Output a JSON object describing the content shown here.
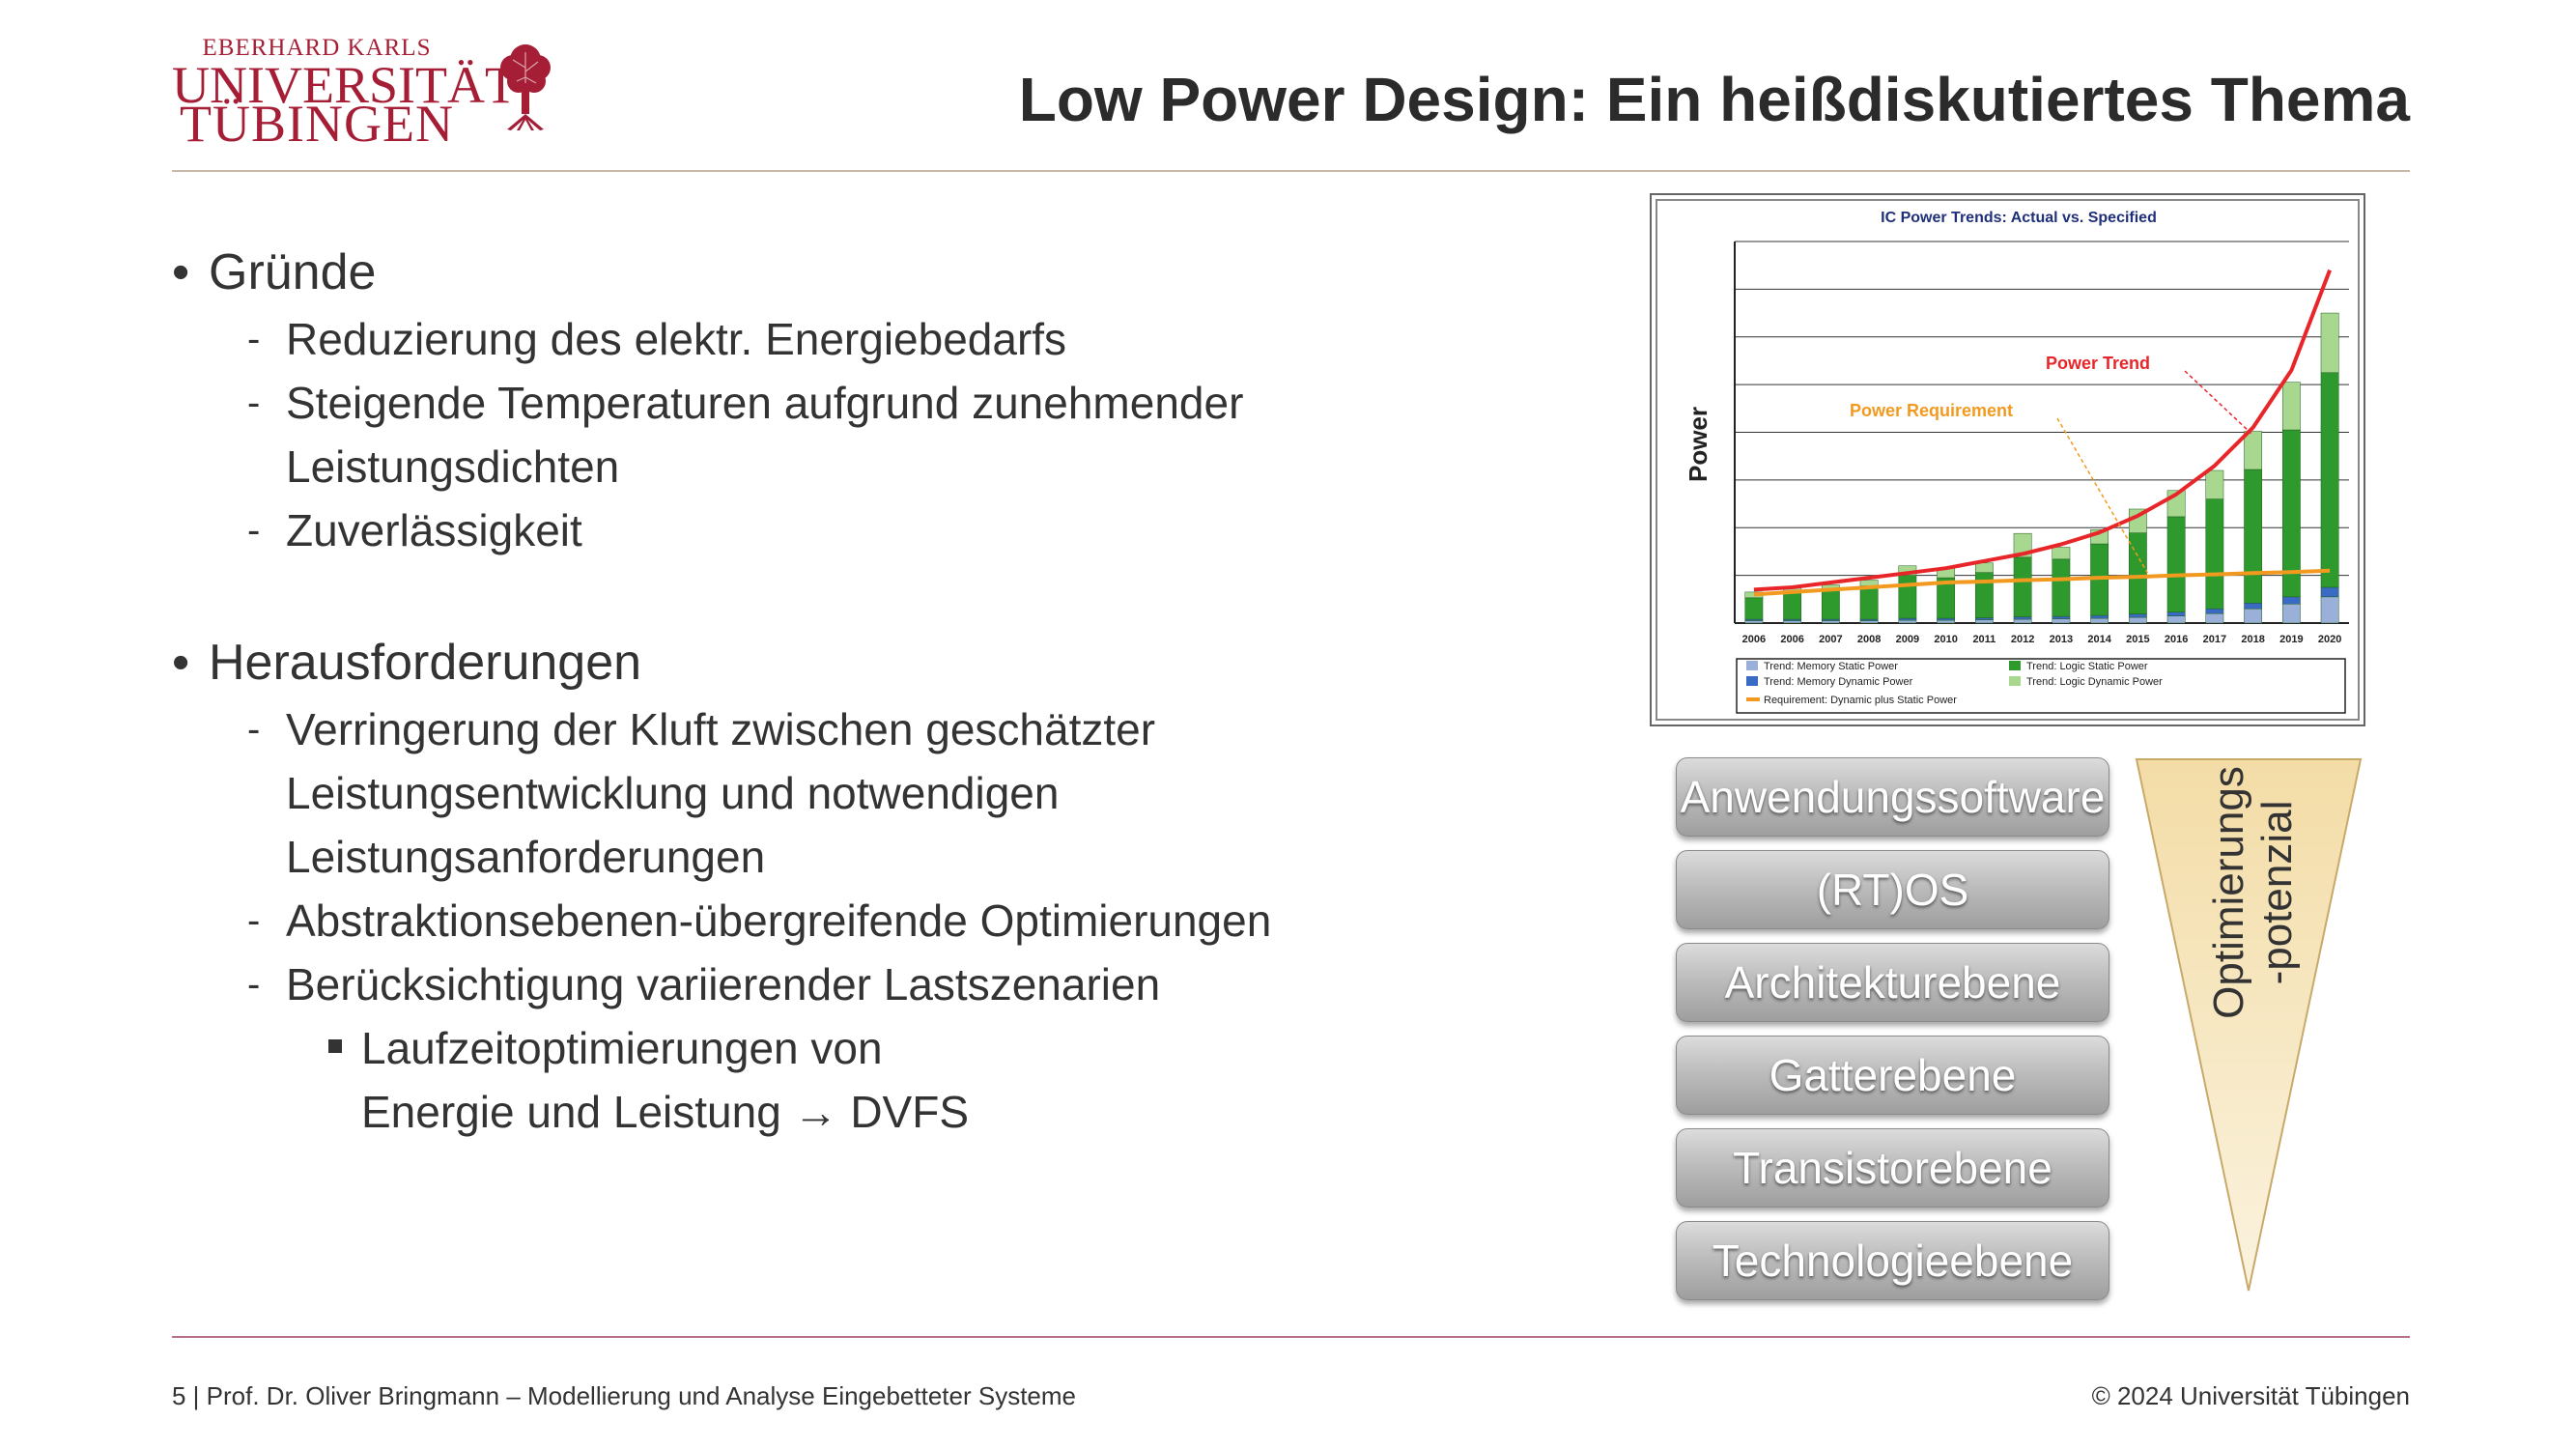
{
  "logo": {
    "line1": "EBERHARD KARLS",
    "line2": "UNIVERSITÄT",
    "line3": "TÜBINGEN"
  },
  "title": "Low Power Design: Ein heißdiskutiertes Thema",
  "bullets": {
    "b1": "Gründe",
    "b1_items": [
      "Reduzierung des elektr. Energiebedarfs",
      "Steigende Temperaturen aufgrund zunehmender",
      "Leistungsdichten",
      "Zuverlässigkeit"
    ],
    "b2": "Herausforderungen",
    "b2_items": [
      "Verringerung der Kluft zwischen geschätzter",
      "Leistungsentwicklung und notwendigen",
      "Leistungsanforderungen",
      "Abstraktionsebenen-übergreifende Optimierungen",
      "Berücksichtigung variierender Lastszenarien"
    ],
    "b3_line1": "Laufzeitoptimierungen von",
    "b3_line2": "Energie und Leistung → DVFS",
    "bullet_char": "•",
    "dash_char": "-"
  },
  "layers": [
    "Anwendungssoftware",
    "(RT)OS",
    "Architekturebene",
    "Gatterebene",
    "Transistorebene",
    "Technologieebene"
  ],
  "triangle": {
    "line1": "Optimierungs",
    "line2": "-potenzial",
    "color": "#f3dca6"
  },
  "footer": {
    "left": "5 | Prof. Dr. Oliver Bringmann – Modellierung und Analyse Eingebetteter Systeme",
    "right": "© 2024 Universität Tübingen"
  },
  "colors": {
    "brand": "#a51e36",
    "trend": "#e8262a",
    "requirement": "#f29a1f"
  },
  "chart_data": {
    "type": "bar",
    "title": "IC Power Trends: Actual vs. Specified",
    "ylabel": "Power",
    "categories": [
      "2006",
      "2006",
      "2007",
      "2008",
      "2009",
      "2010",
      "2011",
      "2012",
      "2013",
      "2014",
      "2015",
      "2016",
      "2017",
      "2018",
      "2019",
      "2020"
    ],
    "ylim": [
      0,
      8
    ],
    "series": [
      {
        "name": "Trend: Memory Static Power",
        "color": "#9ab0d8",
        "values": [
          0.05,
          0.05,
          0.05,
          0.05,
          0.06,
          0.06,
          0.07,
          0.08,
          0.09,
          0.1,
          0.12,
          0.15,
          0.2,
          0.3,
          0.4,
          0.55
        ]
      },
      {
        "name": "Trend: Memory Dynamic Power",
        "color": "#3a6bc4",
        "values": [
          0.03,
          0.03,
          0.03,
          0.03,
          0.04,
          0.04,
          0.04,
          0.05,
          0.05,
          0.06,
          0.07,
          0.08,
          0.1,
          0.12,
          0.15,
          0.2
        ]
      },
      {
        "name": "Trend: Logic Static Power",
        "color": "#2e9a2e",
        "values": [
          0.45,
          0.55,
          0.6,
          0.7,
          0.9,
          0.85,
          0.95,
          1.25,
          1.2,
          1.5,
          1.7,
          2.0,
          2.3,
          2.8,
          3.5,
          4.5
        ]
      },
      {
        "name": "Trend: Logic Dynamic Power",
        "color": "#a8d890",
        "values": [
          0.12,
          0.12,
          0.12,
          0.12,
          0.2,
          0.2,
          0.2,
          0.5,
          0.25,
          0.3,
          0.5,
          0.55,
          0.6,
          0.8,
          1.0,
          1.25
        ]
      }
    ],
    "lines": [
      {
        "name": "Power Trend",
        "color": "#e8262a",
        "values": [
          0.7,
          0.75,
          0.85,
          0.95,
          1.05,
          1.15,
          1.3,
          1.45,
          1.65,
          1.9,
          2.25,
          2.7,
          3.3,
          4.1,
          5.3,
          7.4
        ]
      },
      {
        "name": "Requirement: Dynamic plus Static Power",
        "label": "Power Requirement",
        "color": "#f29a1f",
        "values": [
          0.6,
          0.65,
          0.7,
          0.75,
          0.8,
          0.85,
          0.87,
          0.9,
          0.92,
          0.95,
          0.97,
          1.0,
          1.02,
          1.05,
          1.07,
          1.1
        ]
      }
    ],
    "annotations": [
      "Power Trend",
      "Power Requirement"
    ],
    "legend_position": "bottom",
    "grid": true
  }
}
